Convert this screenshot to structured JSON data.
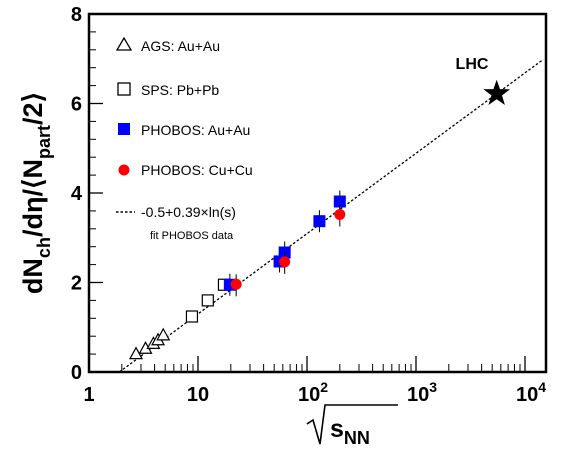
{
  "chart_data": {
    "type": "scatter",
    "x_scale": "log",
    "xlim": [
      1,
      20000
    ],
    "ylim": [
      0,
      8
    ],
    "x_ticks": [
      {
        "value": 1,
        "base": "1",
        "exp": ""
      },
      {
        "value": 10,
        "base": "10",
        "exp": ""
      },
      {
        "value": 100,
        "base": "10",
        "exp": "2"
      },
      {
        "value": 1000,
        "base": "10",
        "exp": "3"
      },
      {
        "value": 10000,
        "base": "10",
        "exp": "4"
      }
    ],
    "y_ticks": [
      {
        "value": 0,
        "label": "0"
      },
      {
        "value": 2,
        "label": "2"
      },
      {
        "value": 4,
        "label": "4"
      },
      {
        "value": 6,
        "label": "6"
      },
      {
        "value": 8,
        "label": "8"
      }
    ],
    "xlabel": {
      "main": "s",
      "sub": "NN"
    },
    "ylabel": {
      "t1": "dN",
      "s1": "ch",
      "t2": "/dη/⟨N",
      "s2": "part",
      "t3": "/2⟩"
    },
    "series": [
      {
        "name": "AGS: Au+Au",
        "marker": "triangle-open",
        "color": "#000000",
        "points": [
          [
            2.7,
            0.41
          ],
          [
            3.3,
            0.53
          ],
          [
            3.9,
            0.64
          ],
          [
            4.3,
            0.72
          ],
          [
            4.8,
            0.83
          ]
        ]
      },
      {
        "name": "SPS: Pb+Pb",
        "marker": "square-open",
        "color": "#000000",
        "points": [
          [
            8.8,
            1.24
          ],
          [
            12.3,
            1.6
          ],
          [
            17.3,
            1.95
          ]
        ]
      },
      {
        "name": "PHOBOS: Au+Au",
        "marker": "square-filled",
        "color": "#0000ff",
        "points": [
          [
            19.6,
            1.95
          ],
          [
            56,
            2.47
          ],
          [
            62.4,
            2.67
          ],
          [
            130,
            3.37
          ],
          [
            200,
            3.81
          ]
        ]
      },
      {
        "name": "PHOBOS: Cu+Cu",
        "marker": "circle-filled",
        "color": "#ff0000",
        "points": [
          [
            22.4,
            1.96
          ],
          [
            62.4,
            2.46
          ],
          [
            200,
            3.52
          ]
        ]
      }
    ],
    "fit": {
      "label": "-0.5+0.39×ln(s)",
      "sublabel": "fit PHOBOS data",
      "intercept": -0.5,
      "slope": 0.39
    },
    "lhc": {
      "label": "LHC",
      "x": 5500,
      "y": 6.22
    }
  }
}
